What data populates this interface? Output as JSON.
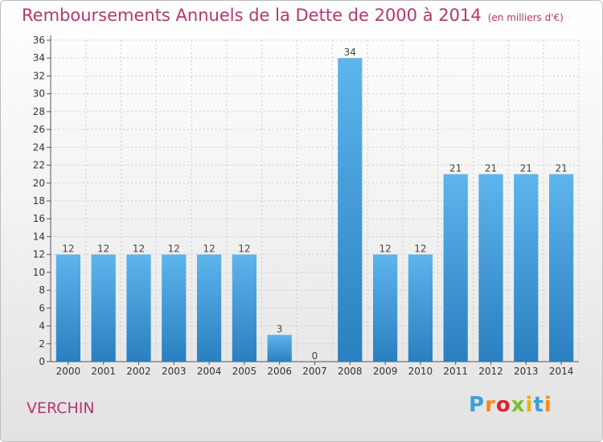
{
  "title": "Remboursements Annuels de la Dette de 2000 à 2014",
  "unit": "(en milliers d'€)",
  "place": "VERCHIN",
  "logo": "Proxiti",
  "colors": {
    "title": "#b4366e",
    "bar_top": "#5eb4ec",
    "bar_bottom": "#2a7fc0",
    "grid": "#cccccc"
  },
  "chart_data": {
    "type": "bar",
    "title": "Remboursements Annuels de la Dette de 2000 à 2014",
    "xlabel": "",
    "ylabel": "",
    "ylim": [
      0,
      36
    ],
    "ytick_step": 2,
    "grid": true,
    "categories": [
      "2000",
      "2001",
      "2002",
      "2003",
      "2004",
      "2005",
      "2006",
      "2007",
      "2008",
      "2009",
      "2010",
      "2011",
      "2012",
      "2013",
      "2014"
    ],
    "values": [
      12,
      12,
      12,
      12,
      12,
      12,
      3,
      0,
      34,
      12,
      12,
      21,
      21,
      21,
      21
    ]
  }
}
